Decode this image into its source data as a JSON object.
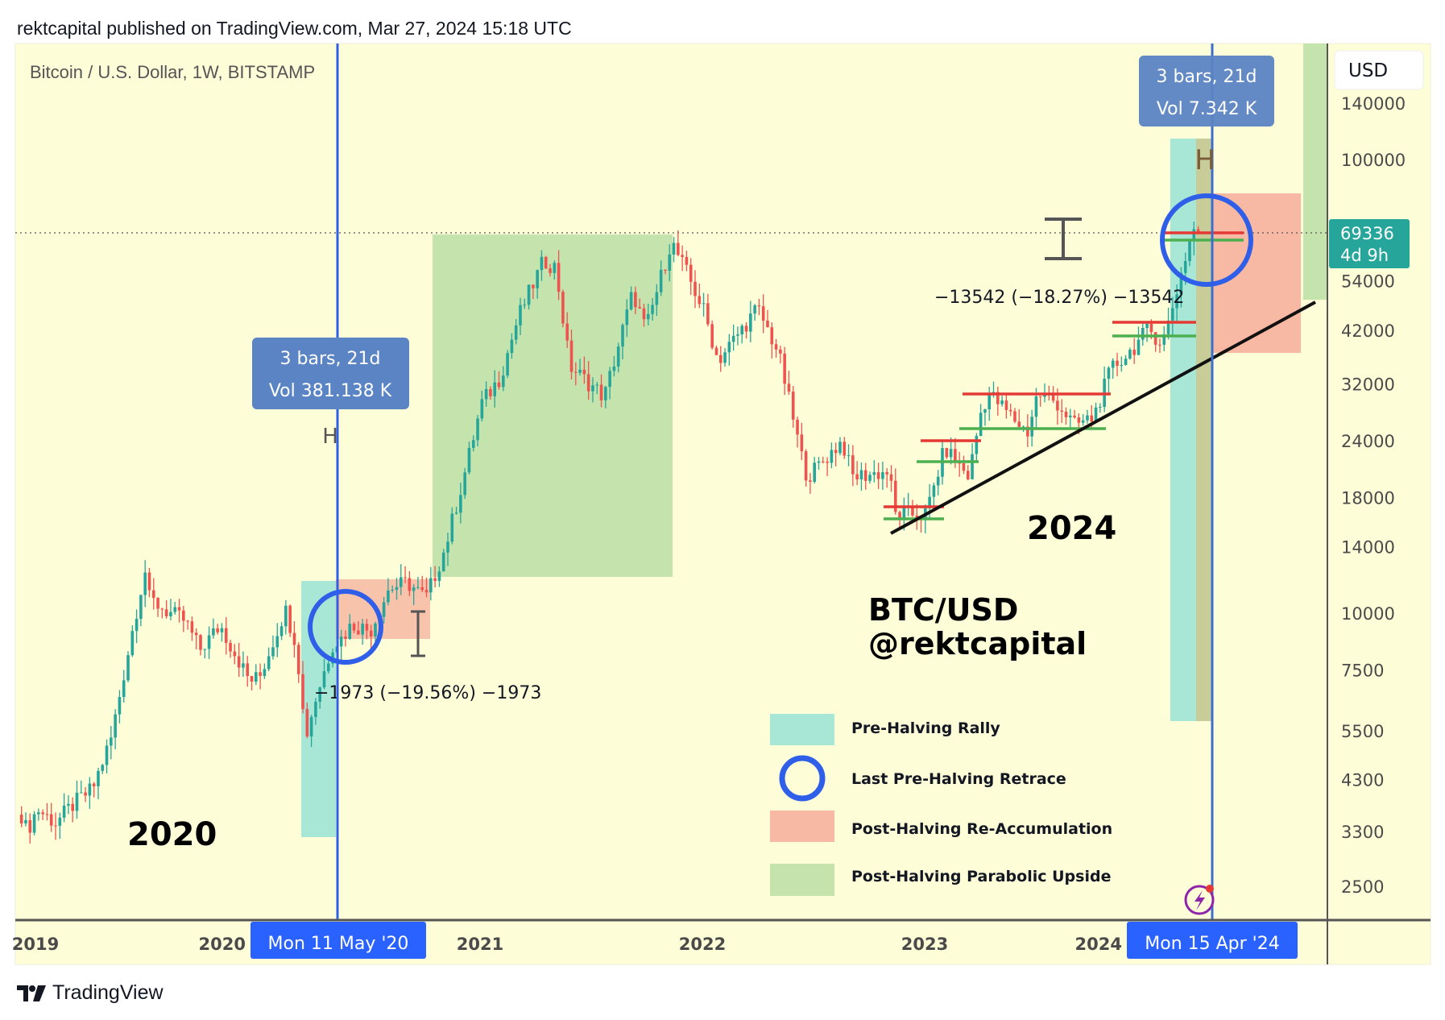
{
  "header": {
    "published": "rektcapital published on TradingView.com, Mar 27, 2024 15:18 UTC"
  },
  "chart": {
    "symbol_title": "Bitcoin / U.S. Dollar, 1W, BITSTAMP",
    "currency_button": "USD",
    "last_price": {
      "value": "69336",
      "countdown": "4d 9h",
      "color": "#26a69a"
    },
    "background": "#fdfdd8"
  },
  "chart_data": {
    "type": "candlestick",
    "title": "Bitcoin / U.S. Dollar, 1W, BITSTAMP",
    "y_scale": "log",
    "ylim": [
      2300,
      145000
    ],
    "xlim": [
      "2018-11-25",
      "2024-05-01"
    ],
    "grid": false,
    "colors": {
      "up": "#26a69a",
      "down": "#ef5350"
    },
    "yticks": [
      "140000",
      "100000",
      "54000",
      "42000",
      "32000",
      "24000",
      "18000",
      "14000",
      "10000",
      "7500",
      "5500",
      "4300",
      "3300",
      "2500"
    ],
    "xticks": [
      "2019",
      "2020",
      "2021",
      "2022",
      "2023",
      "2024"
    ],
    "last_price": 69336,
    "price_path": [
      [
        "2018-11-25",
        4000
      ],
      [
        "2018-12-15",
        3300
      ],
      [
        "2019-01-01",
        3700
      ],
      [
        "2019-02-01",
        3450
      ],
      [
        "2019-03-01",
        3800
      ],
      [
        "2019-04-01",
        4100
      ],
      [
        "2019-05-01",
        5300
      ],
      [
        "2019-06-01",
        8550
      ],
      [
        "2019-06-26",
        12500
      ],
      [
        "2019-07-01",
        10800
      ],
      [
        "2019-08-01",
        10100
      ],
      [
        "2019-09-01",
        9600
      ],
      [
        "2019-09-25",
        8300
      ],
      [
        "2019-10-28",
        9400
      ],
      [
        "2019-12-15",
        7100
      ],
      [
        "2020-01-01",
        7200
      ],
      [
        "2020-02-13",
        10200
      ],
      [
        "2020-03-01",
        8550
      ],
      [
        "2020-03-16",
        5300
      ],
      [
        "2020-04-01",
        6400
      ],
      [
        "2020-05-01",
        8650
      ],
      [
        "2020-05-11",
        8700
      ],
      [
        "2020-06-01",
        9450
      ],
      [
        "2020-07-01",
        9150
      ],
      [
        "2020-08-01",
        11350
      ],
      [
        "2020-09-01",
        11650
      ],
      [
        "2020-10-01",
        10800
      ],
      [
        "2020-11-01",
        13800
      ],
      [
        "2020-12-01",
        19700
      ],
      [
        "2021-01-01",
        29000
      ],
      [
        "2021-02-01",
        33100
      ],
      [
        "2021-03-01",
        45200
      ],
      [
        "2021-04-12",
        60000
      ],
      [
        "2021-05-01",
        57700
      ],
      [
        "2021-05-24",
        35000
      ],
      [
        "2021-07-20",
        30000
      ],
      [
        "2021-09-06",
        51000
      ],
      [
        "2021-09-27",
        42000
      ],
      [
        "2021-11-08",
        66000
      ],
      [
        "2021-12-01",
        57000
      ],
      [
        "2022-01-01",
        46300
      ],
      [
        "2022-01-24",
        36000
      ],
      [
        "2022-03-28",
        47000
      ],
      [
        "2022-05-01",
        37700
      ],
      [
        "2022-06-13",
        21000
      ],
      [
        "2022-06-20",
        20000
      ],
      [
        "2022-08-15",
        24000
      ],
      [
        "2022-09-01",
        20000
      ],
      [
        "2022-11-01",
        20500
      ],
      [
        "2022-11-10",
        16500
      ],
      [
        "2023-01-01",
        16550
      ],
      [
        "2023-02-01",
        23100
      ],
      [
        "2023-03-10",
        20000
      ],
      [
        "2023-04-01",
        28500
      ],
      [
        "2023-04-14",
        30400
      ],
      [
        "2023-06-15",
        25000
      ],
      [
        "2023-07-01",
        30450
      ],
      [
        "2023-08-01",
        29250
      ],
      [
        "2023-09-01",
        25950
      ],
      [
        "2023-10-01",
        26950
      ],
      [
        "2023-11-01",
        34650
      ],
      [
        "2023-12-01",
        37700
      ],
      [
        "2024-01-01",
        42250
      ],
      [
        "2024-01-23",
        39500
      ],
      [
        "2024-02-01",
        42600
      ],
      [
        "2024-03-01",
        61200
      ],
      [
        "2024-03-14",
        71000
      ],
      [
        "2024-03-20",
        64000
      ],
      [
        "2024-03-27",
        69336
      ]
    ]
  },
  "annotations": {
    "halving_2020": {
      "date_label": "Mon 11 May '20",
      "tooltip_line1": "3 bars, 21d",
      "tooltip_line2": "Vol 381.138 K",
      "marker": "H"
    },
    "halving_2024": {
      "date_label": "Mon 15 Apr '24",
      "tooltip_line1": "3 bars, 21d",
      "tooltip_line2": "Vol 7.342 K",
      "marker": "H"
    },
    "retrace_2020": "−1973 (−19.56%) −1973",
    "retrace_2024": "−13542 (−18.27%) −13542",
    "label_2020": "2020",
    "label_2024": "2024",
    "watermark_line1": "BTC/USD",
    "watermark_line2": "@rektcapital",
    "accent_blue": "#2f5fe8",
    "tooltip_color": "#5b84c4",
    "date_box_color": "#2962ff"
  },
  "legend": {
    "items": [
      {
        "label": "Pre-Halving Rally",
        "color": "#a8e6d6"
      },
      {
        "label": "Last Pre-Halving Retrace",
        "color": "#2f5fe8"
      },
      {
        "label": "Post-Halving Re-Accumulation",
        "color": "#f7b9a3"
      },
      {
        "label": "Post-Halving Parabolic Upside",
        "color": "#c5e3ad"
      }
    ]
  },
  "footer": {
    "logo": "TradingView"
  }
}
